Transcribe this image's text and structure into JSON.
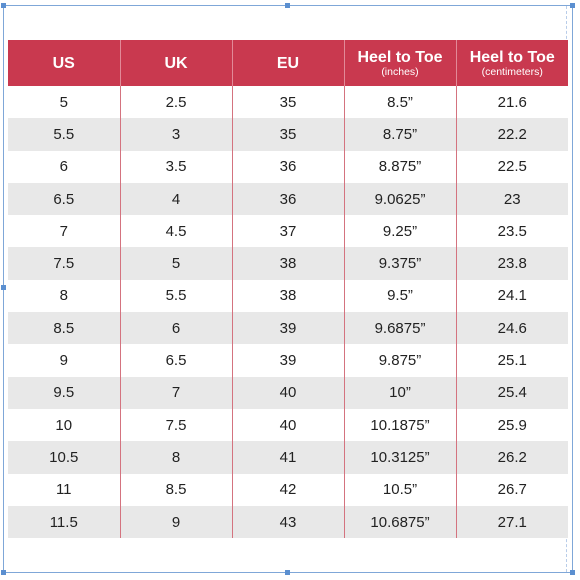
{
  "table": {
    "headers": [
      {
        "label": "US",
        "sub": ""
      },
      {
        "label": "UK",
        "sub": ""
      },
      {
        "label": "EU",
        "sub": ""
      },
      {
        "label": "Heel to Toe",
        "sub": "(inches)"
      },
      {
        "label": "Heel to Toe",
        "sub": "(centimeters)"
      }
    ],
    "rows": [
      [
        "5",
        "2.5",
        "35",
        "8.5”",
        "21.6"
      ],
      [
        "5.5",
        "3",
        "35",
        "8.75”",
        "22.2"
      ],
      [
        "6",
        "3.5",
        "36",
        "8.875”",
        "22.5"
      ],
      [
        "6.5",
        "4",
        "36",
        "9.0625”",
        "23"
      ],
      [
        "7",
        "4.5",
        "37",
        "9.25”",
        "23.5"
      ],
      [
        "7.5",
        "5",
        "38",
        "9.375”",
        "23.8"
      ],
      [
        "8",
        "5.5",
        "38",
        "9.5”",
        "24.1"
      ],
      [
        "8.5",
        "6",
        "39",
        "9.6875”",
        "24.6"
      ],
      [
        "9",
        "6.5",
        "39",
        "9.875”",
        "25.1"
      ],
      [
        "9.5",
        "7",
        "40",
        "10”",
        "25.4"
      ],
      [
        "10",
        "7.5",
        "40",
        "10.1875”",
        "25.9"
      ],
      [
        "10.5",
        "8",
        "41",
        "10.3125”",
        "26.2"
      ],
      [
        "11",
        "8.5",
        "42",
        "10.5”",
        "26.7"
      ],
      [
        "11.5",
        "9",
        "43",
        "10.6875”",
        "27.1"
      ]
    ],
    "colors": {
      "header_bg": "#c9394f",
      "header_text": "#ffffff",
      "stripe": "#e8e8e8",
      "divider": "#d4737f"
    }
  }
}
